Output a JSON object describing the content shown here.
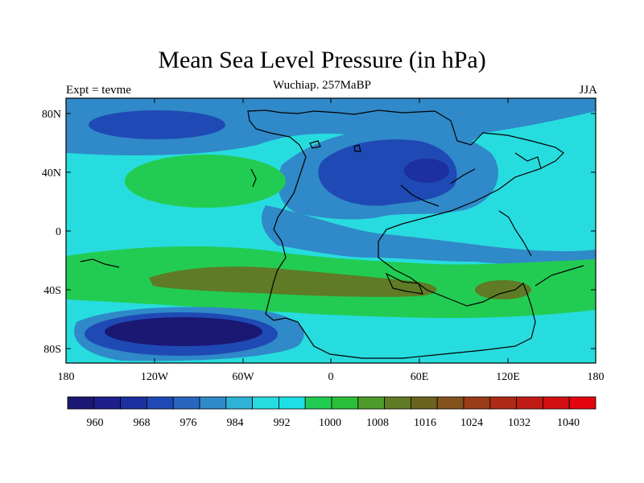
{
  "title": "Mean Sea Level Pressure (in hPa)",
  "subtitle": "Wuchiap. 257MaBP",
  "left_label": "Expt = tevme",
  "right_label": "JJA",
  "y_ticks": [
    "80N",
    "40N",
    "0",
    "40S",
    "80S"
  ],
  "x_ticks": [
    "180",
    "120W",
    "60W",
    "0",
    "60E",
    "120E",
    "180"
  ],
  "colorbar": {
    "labels": [
      "960",
      "968",
      "976",
      "984",
      "992",
      "1000",
      "1008",
      "1016",
      "1024",
      "1032",
      "1040"
    ],
    "colors": [
      "#1a1873",
      "#1c1f8c",
      "#1d2fa1",
      "#1f4ab5",
      "#2866be",
      "#3089c8",
      "#2fb2d7",
      "#27dcdf",
      "#1de0e6",
      "#22cc52",
      "#2bbf3c",
      "#4e9b2b",
      "#5f7b25",
      "#6b6220",
      "#84521d",
      "#9a3c19",
      "#ad2a17",
      "#c01b15",
      "#d30f12",
      "#e3050f"
    ]
  },
  "colors": {
    "ocean_base": "#27dcdf",
    "high_band": "#5f7b25",
    "green": "#22cc52",
    "low_deep": "#1a1873",
    "low_mid": "#1f4ab5",
    "low_light": "#3089c8"
  }
}
